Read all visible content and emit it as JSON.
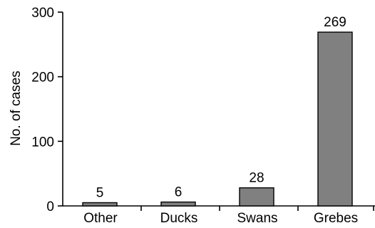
{
  "chart_data": {
    "type": "bar",
    "categories": [
      "Other",
      "Ducks",
      "Swans",
      "Grebes"
    ],
    "values": [
      5,
      6,
      28,
      269
    ],
    "data_labels": [
      "5",
      "6",
      "28",
      "269"
    ],
    "title": "",
    "xlabel": "",
    "ylabel": "No. of cases",
    "ylim": [
      0,
      300
    ],
    "yticks": [
      0,
      100,
      200,
      300
    ],
    "ytick_labels": [
      "0",
      "100",
      "200",
      "300"
    ],
    "grid": false,
    "legend": "none",
    "bar_color": "#808080"
  }
}
